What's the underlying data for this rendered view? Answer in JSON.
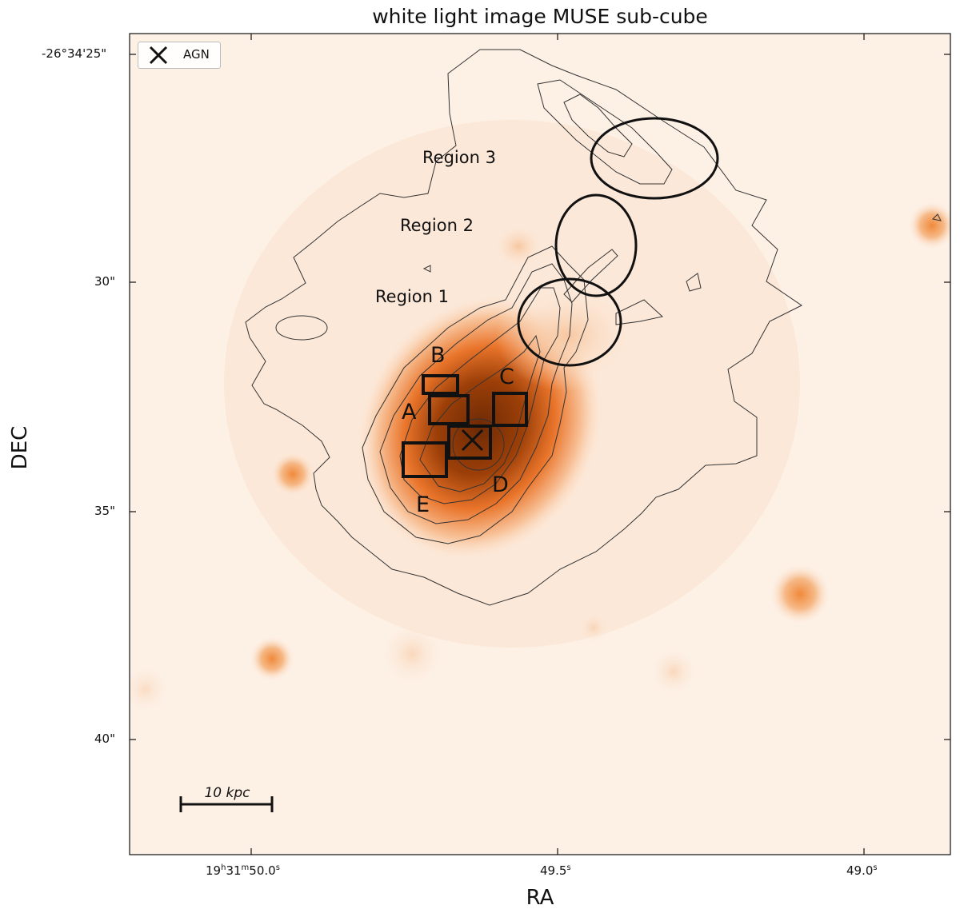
{
  "title": "white light image MUSE sub-cube",
  "xlabel": "RA",
  "ylabel": "DEC",
  "legend": {
    "agn": "AGN"
  },
  "ticks": {
    "ra": [
      {
        "h": "19",
        "hu": "h",
        "m": "31",
        "mu": "m",
        "s": "50.0",
        "su": "s"
      },
      {
        "s": "49.5",
        "su": "s"
      },
      {
        "s": "49.0",
        "su": "s"
      }
    ],
    "dec": [
      "-26°34'25\"",
      "30\"",
      "35\"",
      "40\""
    ]
  },
  "regions": [
    "Region 3",
    "Region 2",
    "Region 1"
  ],
  "boxes": [
    "A",
    "B",
    "C",
    "D",
    "E"
  ],
  "scale_bar": "10 kpc",
  "colors": {
    "colormap_low": "#fdf0e6",
    "colormap_mid": "#f08a3c",
    "colormap_high": "#7a2e06",
    "markers": "#111111",
    "contours": "#333333"
  }
}
